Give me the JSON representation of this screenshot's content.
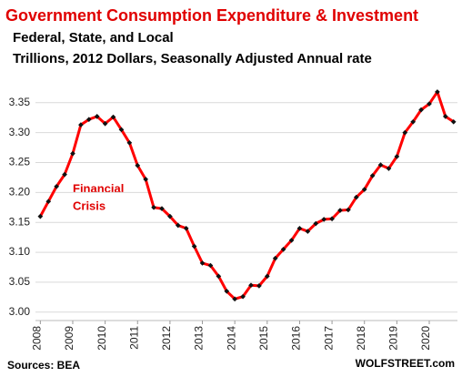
{
  "chart_data": {
    "type": "line",
    "title": "Government Consumption  Expenditure & Investment",
    "subtitle": "Federal, State, and Local",
    "subtitle2": "Trillions, 2012 Dollars, Seasonally Adjusted Annual rate",
    "annotations": [
      "Financial",
      "Crisis"
    ],
    "source": "Sources: BEA",
    "credit": "WOLFSTREET.com",
    "x": [
      2008,
      2008.25,
      2008.5,
      2008.75,
      2009,
      2009.25,
      2009.5,
      2009.75,
      2010,
      2010.25,
      2010.5,
      2010.75,
      2011,
      2011.25,
      2011.5,
      2011.75,
      2012,
      2012.25,
      2012.5,
      2012.75,
      2013,
      2013.25,
      2013.5,
      2013.75,
      2014,
      2014.25,
      2014.5,
      2014.75,
      2015,
      2015.25,
      2015.5,
      2015.75,
      2016,
      2016.25,
      2016.5,
      2016.75,
      2017,
      2017.25,
      2017.5,
      2017.75,
      2018,
      2018.25,
      2018.5,
      2018.75,
      2019,
      2019.25,
      2019.5,
      2019.75,
      2020,
      2020.25,
      2020.5,
      2020.75
    ],
    "series": [
      {
        "color": "#ff0000",
        "marker_color": "#111111",
        "values": [
          3.16,
          3.185,
          3.21,
          3.23,
          3.265,
          3.313,
          3.322,
          3.327,
          3.315,
          3.326,
          3.305,
          3.283,
          3.245,
          3.222,
          3.175,
          3.173,
          3.16,
          3.145,
          3.14,
          3.11,
          3.082,
          3.078,
          3.06,
          3.035,
          3.022,
          3.026,
          3.045,
          3.044,
          3.06,
          3.09,
          3.105,
          3.12,
          3.14,
          3.135,
          3.148,
          3.155,
          3.156,
          3.17,
          3.171,
          3.192,
          3.205,
          3.228,
          3.246,
          3.24,
          3.26,
          3.3,
          3.318,
          3.338,
          3.348,
          3.368,
          3.327,
          3.318
        ]
      }
    ],
    "xlim": [
      2007.85,
      2020.87
    ],
    "xticks": [
      2008,
      2009,
      2010,
      2011,
      2012,
      2013,
      2014,
      2015,
      2016,
      2017,
      2018,
      2019,
      2020
    ],
    "ylim": [
      2.986,
      3.377
    ],
    "yticks": [
      {
        "value": 3,
        "label": "3.00"
      },
      3.05,
      {
        "value": 3.1,
        "label": "3.10"
      },
      3.15,
      {
        "value": 3.2,
        "label": "3.20"
      },
      3.25,
      {
        "value": 3.3,
        "label": "3.30"
      },
      3.35
    ],
    "grid": true
  }
}
